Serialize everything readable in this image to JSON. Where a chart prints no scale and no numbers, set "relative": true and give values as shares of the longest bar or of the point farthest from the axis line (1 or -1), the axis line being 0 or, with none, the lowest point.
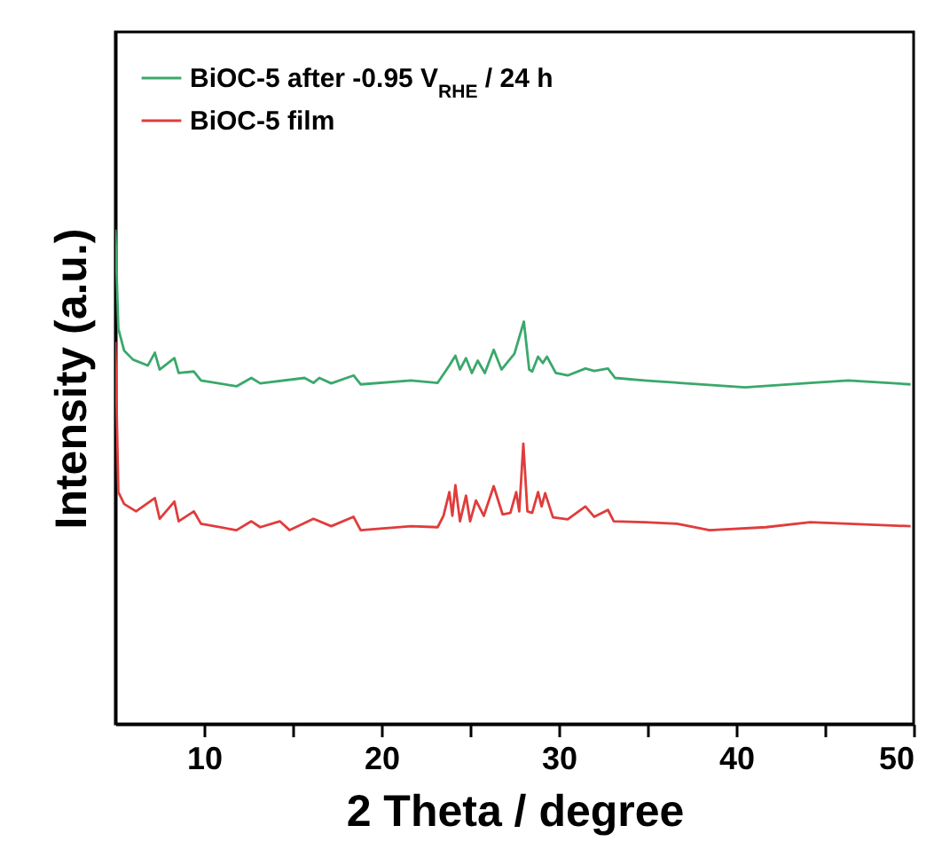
{
  "chart_data": {
    "type": "line",
    "xlabel": "2 Theta / degree",
    "ylabel": "Intensity (a.u.)",
    "relative": true,
    "xlim": [
      5,
      50
    ],
    "xticks": [
      10,
      {
        "value": 15,
        "label": null
      },
      20,
      {
        "value": 25,
        "label": null
      },
      30,
      {
        "value": 35,
        "label": null
      },
      40,
      {
        "value": 45,
        "label": null
      },
      50
    ],
    "legend": "top left",
    "grid": false,
    "series": [
      {
        "name": "BiOC-5 after -0.95 V$_{RHE}$ / 24 h",
        "color": "#3aa86b",
        "x": [
          5.0,
          5.17,
          5.5,
          6.0,
          6.83,
          7.23,
          7.5,
          8.33,
          8.57,
          9.43,
          9.83,
          11.83,
          12.67,
          13.17,
          15.67,
          16.17,
          16.5,
          17.17,
          18.43,
          18.83,
          21.67,
          23.17,
          23.83,
          24.17,
          24.43,
          24.77,
          25.1,
          25.43,
          25.83,
          26.33,
          26.77,
          27.5,
          28.03,
          28.33,
          28.5,
          28.83,
          29.1,
          29.33,
          29.83,
          30.5,
          31.5,
          32.0,
          32.77,
          33.17,
          34.83,
          37.17,
          40.5,
          44.17,
          46.33,
          49.83
        ],
        "values": [
          1.0,
          0.8,
          0.755,
          0.737,
          0.725,
          0.751,
          0.717,
          0.74,
          0.71,
          0.713,
          0.695,
          0.683,
          0.7,
          0.689,
          0.7,
          0.69,
          0.7,
          0.689,
          0.705,
          0.687,
          0.695,
          0.69,
          0.725,
          0.745,
          0.717,
          0.74,
          0.71,
          0.735,
          0.71,
          0.757,
          0.717,
          0.749,
          0.814,
          0.717,
          0.713,
          0.743,
          0.73,
          0.743,
          0.71,
          0.705,
          0.719,
          0.714,
          0.719,
          0.7,
          0.695,
          0.689,
          0.681,
          0.69,
          0.695,
          0.687
        ]
      },
      {
        "name": "BiOC-5 film",
        "color": "#e03c3c",
        "x": [
          5.0,
          5.17,
          5.5,
          6.17,
          7.23,
          7.5,
          8.33,
          8.57,
          9.43,
          9.83,
          11.83,
          12.67,
          13.17,
          14.27,
          14.83,
          16.17,
          17.17,
          18.43,
          18.83,
          21.67,
          23.17,
          23.5,
          23.83,
          24.0,
          24.17,
          24.43,
          24.77,
          25.0,
          25.33,
          25.77,
          26.33,
          26.83,
          27.27,
          27.6,
          27.77,
          28.0,
          28.23,
          28.5,
          28.83,
          29.03,
          29.23,
          29.67,
          30.5,
          31.5,
          32.0,
          32.77,
          33.1,
          34.83,
          36.67,
          38.5,
          41.67,
          44.17,
          46.33,
          49.83
        ],
        "values": [
          0.773,
          0.469,
          0.445,
          0.43,
          0.457,
          0.415,
          0.45,
          0.41,
          0.43,
          0.405,
          0.392,
          0.41,
          0.398,
          0.41,
          0.392,
          0.415,
          0.4,
          0.419,
          0.392,
          0.4,
          0.398,
          0.421,
          0.469,
          0.421,
          0.483,
          0.41,
          0.462,
          0.41,
          0.452,
          0.421,
          0.481,
          0.424,
          0.427,
          0.469,
          0.43,
          0.567,
          0.43,
          0.427,
          0.469,
          0.44,
          0.467,
          0.418,
          0.414,
          0.44,
          0.419,
          0.433,
          0.41,
          0.408,
          0.405,
          0.392,
          0.398,
          0.408,
          0.405,
          0.4
        ]
      }
    ]
  }
}
